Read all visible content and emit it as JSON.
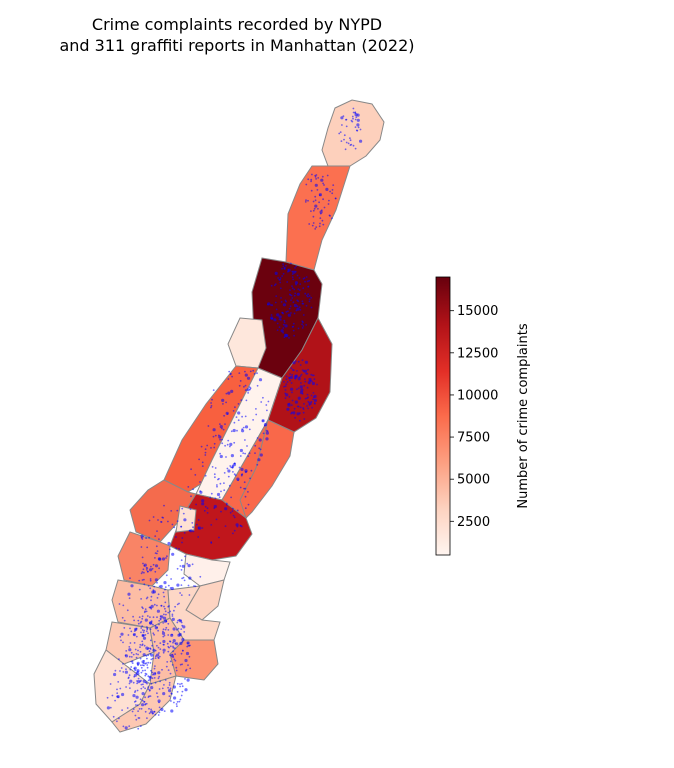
{
  "map": {
    "title_line1": "Crime complaints recorded by NYPD",
    "title_line2": "and 311 graffiti reports in Manhattan (2022)",
    "colorbar": {
      "label": "Number of crime complaints",
      "ticks": [
        "2500",
        "5000",
        "7500",
        "10000",
        "12500",
        "15000"
      ],
      "tick_values": [
        2500,
        5000,
        7500,
        10000,
        12500,
        15000
      ],
      "min": 500,
      "max": 17000,
      "colormap": "Reds",
      "color_stops": [
        "#fff5f0",
        "#fdd4c2",
        "#fca082",
        "#fb6b4b",
        "#e32f27",
        "#b11218",
        "#67000d"
      ]
    },
    "point_color": "#0000ff",
    "boundary_color": "#888888"
  }
}
